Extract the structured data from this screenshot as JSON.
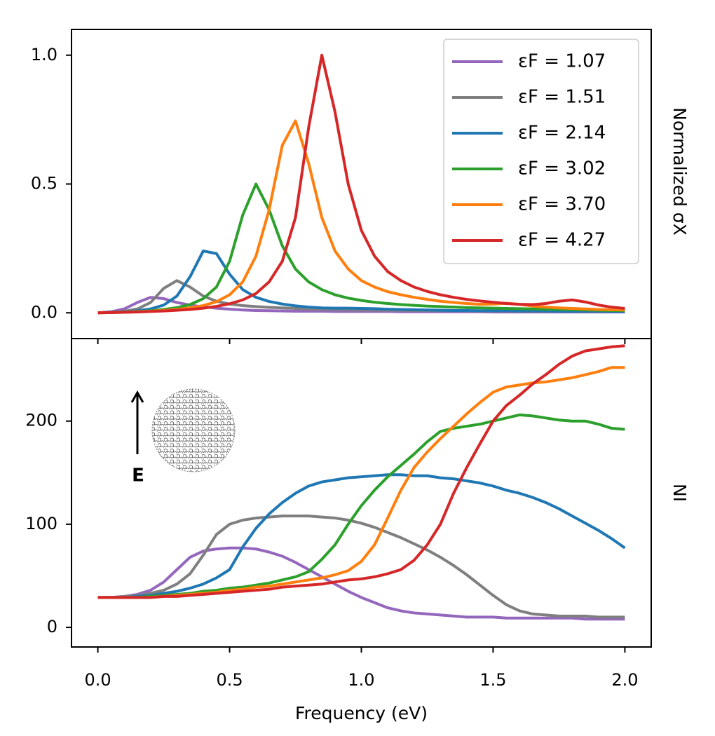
{
  "chart_data": [
    {
      "type": "line",
      "ylabel": "Normalized σX",
      "x": [
        0,
        0.05,
        0.1,
        0.15,
        0.2,
        0.25,
        0.3,
        0.35,
        0.4,
        0.45,
        0.5,
        0.55,
        0.6,
        0.65,
        0.7,
        0.75,
        0.8,
        0.85,
        0.9,
        0.95,
        1.0,
        1.05,
        1.1,
        1.15,
        1.2,
        1.25,
        1.3,
        1.35,
        1.4,
        1.45,
        1.5,
        1.55,
        1.6,
        1.65,
        1.7,
        1.75,
        1.8,
        1.85,
        1.9,
        1.95,
        2.0
      ],
      "xlim": [
        -0.1,
        2.1
      ],
      "xticks": [
        0,
        0.5,
        1,
        1.5,
        2
      ],
      "ylim": [
        -0.1,
        1.1
      ],
      "yticks": [
        {
          "value": 0,
          "label": "0.0"
        },
        {
          "value": 0.5,
          "label": "0.5"
        },
        {
          "value": 1,
          "label": "1.0"
        }
      ],
      "legend": "upper right",
      "series": [
        {
          "name": "εF =  1.07",
          "color": "#9467bd",
          "values": [
            0,
            0.004,
            0.015,
            0.04,
            0.06,
            0.055,
            0.04,
            0.03,
            0.023,
            0.018,
            0.014,
            0.011,
            0.009,
            0.008,
            0.007,
            0.006,
            0.006,
            0.006,
            0.005,
            0.005,
            0.005,
            0.005,
            0.005,
            0.004,
            0.004,
            0.004,
            0.004,
            0.004,
            0.004,
            0.004,
            0.003,
            0.003,
            0.003,
            0.003,
            0.003,
            0.003,
            0.003,
            0.003,
            0.003,
            0.003,
            0.003
          ]
        },
        {
          "name": "εF =  1.51",
          "color": "#7f7f7f",
          "values": [
            0,
            0.002,
            0.006,
            0.015,
            0.04,
            0.095,
            0.125,
            0.1,
            0.065,
            0.045,
            0.034,
            0.028,
            0.024,
            0.021,
            0.019,
            0.017,
            0.015,
            0.014,
            0.013,
            0.012,
            0.011,
            0.011,
            0.01,
            0.01,
            0.009,
            0.009,
            0.008,
            0.008,
            0.008,
            0.007,
            0.007,
            0.007,
            0.006,
            0.006,
            0.006,
            0.006,
            0.006,
            0.005,
            0.005,
            0.005,
            0.005
          ]
        },
        {
          "name": "εF =  2.14",
          "color": "#1f77b4",
          "values": [
            0,
            0.002,
            0.004,
            0.008,
            0.015,
            0.03,
            0.065,
            0.14,
            0.24,
            0.23,
            0.15,
            0.09,
            0.06,
            0.044,
            0.034,
            0.027,
            0.022,
            0.019,
            0.018,
            0.018,
            0.017,
            0.016,
            0.014,
            0.013,
            0.012,
            0.011,
            0.01,
            0.009,
            0.009,
            0.008,
            0.008,
            0.008,
            0.007,
            0.007,
            0.007,
            0.006,
            0.006,
            0.006,
            0.006,
            0.005,
            0.005
          ]
        },
        {
          "name": "εF =  3.02",
          "color": "#2ca02c",
          "values": [
            0,
            0.001,
            0.003,
            0.005,
            0.008,
            0.013,
            0.02,
            0.032,
            0.055,
            0.1,
            0.2,
            0.38,
            0.5,
            0.4,
            0.26,
            0.17,
            0.12,
            0.09,
            0.07,
            0.057,
            0.048,
            0.041,
            0.036,
            0.032,
            0.029,
            0.026,
            0.024,
            0.022,
            0.02,
            0.019,
            0.018,
            0.017,
            0.016,
            0.015,
            0.014,
            0.013,
            0.012,
            0.011,
            0.01,
            0.009,
            0.009
          ]
        },
        {
          "name": "εF =  3.70",
          "color": "#ff7f0e",
          "values": [
            0,
            0.001,
            0.002,
            0.004,
            0.006,
            0.009,
            0.013,
            0.019,
            0.028,
            0.043,
            0.07,
            0.12,
            0.22,
            0.4,
            0.65,
            0.745,
            0.58,
            0.37,
            0.24,
            0.17,
            0.125,
            0.1,
            0.082,
            0.07,
            0.06,
            0.052,
            0.045,
            0.04,
            0.036,
            0.033,
            0.034,
            0.037,
            0.033,
            0.026,
            0.022,
            0.019,
            0.017,
            0.015,
            0.013,
            0.012,
            0.011
          ]
        },
        {
          "name": "εF =  4.27",
          "color": "#d62728",
          "values": [
            0,
            0.001,
            0.002,
            0.003,
            0.005,
            0.007,
            0.01,
            0.013,
            0.018,
            0.025,
            0.035,
            0.05,
            0.075,
            0.12,
            0.2,
            0.37,
            0.72,
            1.0,
            0.78,
            0.5,
            0.32,
            0.22,
            0.16,
            0.125,
            0.1,
            0.083,
            0.07,
            0.06,
            0.052,
            0.046,
            0.041,
            0.036,
            0.033,
            0.032,
            0.036,
            0.045,
            0.05,
            0.042,
            0.03,
            0.022,
            0.017
          ]
        }
      ]
    },
    {
      "type": "line",
      "xlabel": "Frequency (eV)",
      "ylabel": "NI",
      "annotations": [
        "E"
      ],
      "x": [
        0,
        0.05,
        0.1,
        0.15,
        0.2,
        0.25,
        0.3,
        0.35,
        0.4,
        0.45,
        0.5,
        0.55,
        0.6,
        0.65,
        0.7,
        0.75,
        0.8,
        0.85,
        0.9,
        0.95,
        1.0,
        1.05,
        1.1,
        1.15,
        1.2,
        1.25,
        1.3,
        1.35,
        1.4,
        1.45,
        1.5,
        1.55,
        1.6,
        1.65,
        1.7,
        1.75,
        1.8,
        1.85,
        1.9,
        1.95,
        2.0
      ],
      "xlim": [
        -0.1,
        2.1
      ],
      "xticks": [
        {
          "value": 0,
          "label": "0.0"
        },
        {
          "value": 0.5,
          "label": "0.5"
        },
        {
          "value": 1,
          "label": "1.0"
        },
        {
          "value": 1.5,
          "label": "1.5"
        },
        {
          "value": 2,
          "label": "2.0"
        }
      ],
      "ylim": [
        -19,
        280
      ],
      "yticks": [
        0,
        100,
        200
      ],
      "series": [
        {
          "name": "εF =  1.07",
          "color": "#9467bd",
          "values": [
            29,
            29,
            30,
            32,
            36,
            44,
            56,
            68,
            74,
            76,
            77,
            77,
            76,
            73,
            69,
            63,
            56,
            49,
            42,
            35,
            29,
            24,
            19,
            16,
            14,
            13,
            12,
            11,
            10,
            10,
            10,
            9,
            9,
            9,
            9,
            9,
            9,
            8,
            8,
            8,
            8
          ]
        },
        {
          "name": "εF =  1.51",
          "color": "#7f7f7f",
          "values": [
            29,
            29,
            30,
            31,
            33,
            36,
            42,
            52,
            70,
            90,
            100,
            104,
            106,
            107,
            108,
            108,
            108,
            107,
            106,
            104,
            101,
            97,
            92,
            87,
            81,
            75,
            68,
            60,
            51,
            41,
            31,
            22,
            16,
            13,
            12,
            11,
            11,
            11,
            10,
            10,
            10
          ]
        },
        {
          "name": "εF =  2.14",
          "color": "#1f77b4",
          "values": [
            29,
            29,
            29,
            30,
            31,
            33,
            35,
            38,
            42,
            48,
            56,
            78,
            96,
            110,
            121,
            130,
            137,
            141,
            143,
            145,
            146,
            147,
            148,
            148,
            147,
            147,
            145,
            144,
            142,
            140,
            137,
            133,
            130,
            126,
            121,
            115,
            108,
            101,
            94,
            86,
            77
          ]
        },
        {
          "name": "εF =  3.02",
          "color": "#2ca02c",
          "values": [
            29,
            29,
            29,
            29,
            30,
            31,
            32,
            33,
            35,
            36,
            38,
            39,
            41,
            43,
            46,
            49,
            54,
            66,
            80,
            100,
            118,
            133,
            146,
            157,
            168,
            180,
            190,
            193,
            195,
            197,
            200,
            203,
            206,
            205,
            203,
            201,
            200,
            200,
            197,
            193,
            192
          ]
        },
        {
          "name": "εF =  3.70",
          "color": "#ff7f0e",
          "values": [
            29,
            29,
            29,
            29,
            29,
            30,
            31,
            32,
            33,
            34,
            36,
            37,
            39,
            40,
            42,
            44,
            46,
            48,
            51,
            55,
            64,
            80,
            106,
            133,
            155,
            170,
            183,
            195,
            207,
            218,
            228,
            233,
            235,
            237,
            238,
            240,
            242,
            245,
            248,
            252,
            252
          ]
        },
        {
          "name": "εF =  4.27",
          "color": "#d62728",
          "values": [
            29,
            29,
            29,
            29,
            29,
            30,
            30,
            31,
            32,
            33,
            34,
            35,
            36,
            37,
            39,
            40,
            41,
            42,
            44,
            46,
            47,
            49,
            52,
            56,
            65,
            80,
            100,
            130,
            155,
            178,
            200,
            215,
            225,
            236,
            245,
            255,
            263,
            268,
            270,
            272,
            273
          ]
        }
      ]
    }
  ]
}
